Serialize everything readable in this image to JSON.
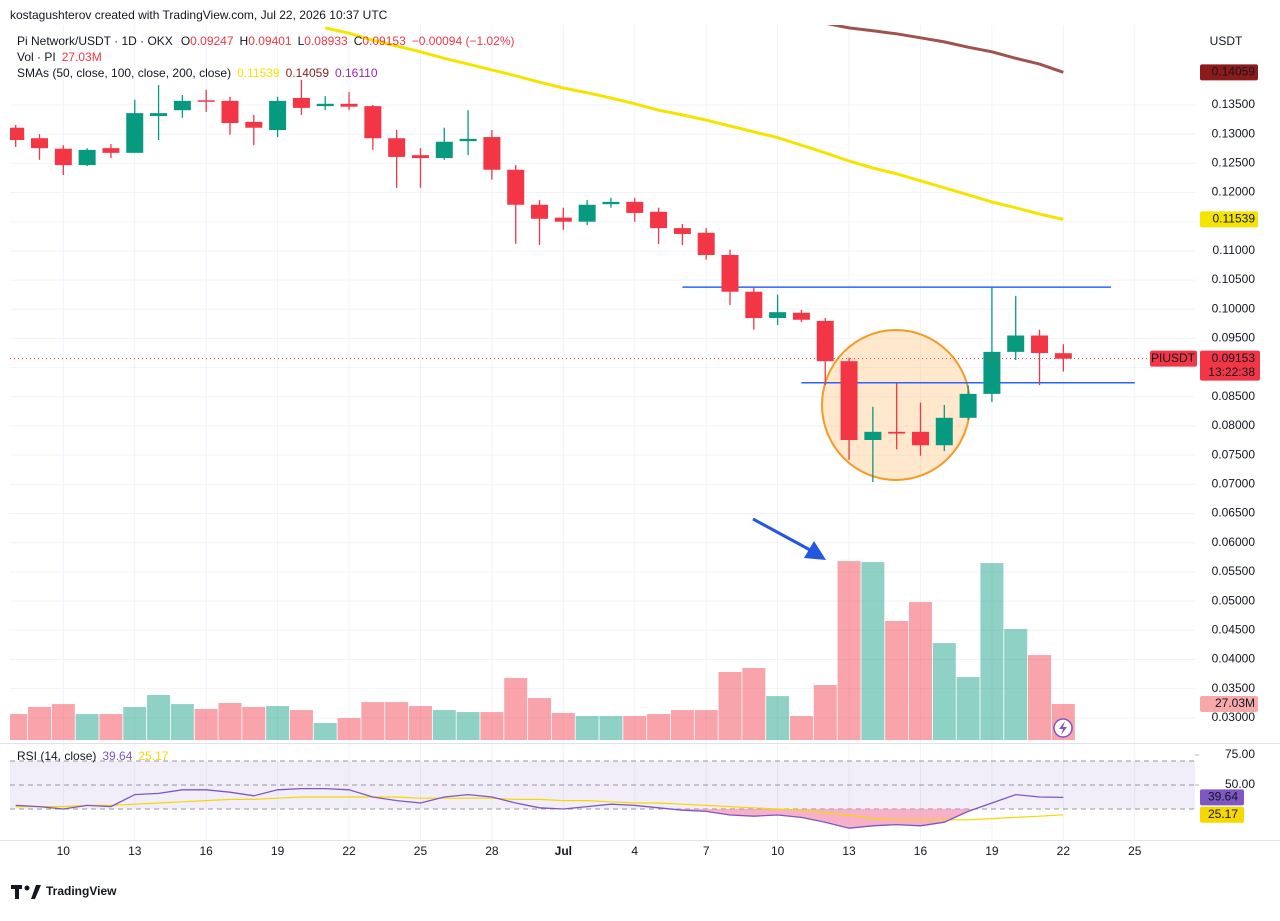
{
  "chart_data": {
    "type": "candlestick",
    "attribution": "kostagushterov created with TradingView.com, Jul 22, 2026 10:37 UTC",
    "title": "Pi Network/USDT · 1D · OKX",
    "ohlc_legend": [
      {
        "key": "O",
        "value": "0.09247"
      },
      {
        "key": "H",
        "value": "0.09401"
      },
      {
        "key": "L",
        "value": "0.08933"
      },
      {
        "key": "C",
        "value": "0.09153"
      }
    ],
    "change_legend": "−0.00094 (−1.02%)",
    "volume_legend": "Vol · PI",
    "sma_legend": "SMAs (50, close, 100, close, 200, close)",
    "sma_legend_values": [
      "0.11539",
      "0.14059",
      "0.16110"
    ],
    "sma_legend_colors": [
      "#f5e400",
      "#8e1b1b",
      "#9c27b0"
    ],
    "axis_unit": "USDT",
    "symbol_label": "PIUSDT",
    "countdown": "13:22:38",
    "logo": "TradingView",
    "up_color": "#089981",
    "down_color": "#f23645",
    "open": [
      0.1311,
      0.1293,
      0.1275,
      0.1247,
      0.1276,
      0.1268,
      0.1331,
      0.1341,
      0.1358,
      0.1357,
      0.1321,
      0.1307,
      0.1362,
      0.1348,
      0.1352,
      0.1348,
      0.1293,
      0.1264,
      0.1259,
      0.1288,
      0.1295,
      0.1239,
      0.1179,
      0.1157,
      0.115,
      0.118,
      0.1184,
      0.1167,
      0.1139,
      0.1131,
      0.1093,
      0.103,
      0.0985,
      0.0994,
      0.098,
      0.0911,
      0.0776,
      0.079,
      0.079,
      0.0767,
      0.0814,
      0.0855,
      0.0927,
      0.0955,
      0.09247
    ],
    "high": [
      0.1316,
      0.13,
      0.1281,
      0.1276,
      0.1283,
      0.1359,
      0.1384,
      0.1367,
      0.1376,
      0.1364,
      0.1333,
      0.1364,
      0.1393,
      0.1365,
      0.1372,
      0.135,
      0.1307,
      0.1276,
      0.1311,
      0.1341,
      0.1307,
      0.1247,
      0.1187,
      0.1174,
      0.1187,
      0.1191,
      0.1191,
      0.1174,
      0.1146,
      0.1139,
      0.1102,
      0.1037,
      0.1025,
      0.0999,
      0.0985,
      0.0917,
      0.0833,
      0.0873,
      0.084,
      0.0836,
      0.087,
      0.1037,
      0.1023,
      0.0965,
      0.09401
    ],
    "low": [
      0.1278,
      0.1256,
      0.123,
      0.1245,
      0.1259,
      0.1268,
      0.129,
      0.1328,
      0.1338,
      0.1299,
      0.1281,
      0.1295,
      0.1333,
      0.1341,
      0.1341,
      0.1273,
      0.1208,
      0.1208,
      0.1256,
      0.1264,
      0.1222,
      0.1112,
      0.111,
      0.1136,
      0.1144,
      0.1174,
      0.115,
      0.1112,
      0.111,
      0.1085,
      0.1007,
      0.0965,
      0.0973,
      0.0978,
      0.087,
      0.0742,
      0.0704,
      0.076,
      0.0749,
      0.0757,
      0.081,
      0.0841,
      0.0913,
      0.087,
      0.08933
    ],
    "close": [
      0.129,
      0.1276,
      0.1247,
      0.1273,
      0.1268,
      0.1336,
      0.1336,
      0.1357,
      0.1356,
      0.1319,
      0.1311,
      0.1357,
      0.1345,
      0.1352,
      0.1347,
      0.1293,
      0.1261,
      0.1259,
      0.1287,
      0.1292,
      0.1239,
      0.1179,
      0.1155,
      0.115,
      0.1179,
      0.1184,
      0.1165,
      0.1139,
      0.1129,
      0.1093,
      0.103,
      0.0985,
      0.0995,
      0.0982,
      0.0911,
      0.0776,
      0.079,
      0.0787,
      0.0767,
      0.0814,
      0.0855,
      0.0927,
      0.0955,
      0.0925,
      0.09153
    ],
    "sma": [
      {
        "color": "#f5e400",
        "values": [
          null,
          null,
          null,
          null,
          null,
          null,
          null,
          null,
          null,
          null,
          null,
          null,
          null,
          0.1482,
          0.1473,
          0.1461,
          0.1451,
          0.1441,
          0.143,
          0.142,
          0.141,
          0.14,
          0.1389,
          0.1379,
          0.1371,
          0.1362,
          0.1352,
          0.1341,
          0.1333,
          0.1324,
          0.1314,
          0.1304,
          0.1294,
          0.1281,
          0.1268,
          0.1254,
          0.1242,
          0.1232,
          0.122,
          0.1208,
          0.1196,
          0.1184,
          0.1174,
          0.1163,
          0.11539
        ],
        "label_text_color": "#131722"
      },
      {
        "color": "#a0524d",
        "values": [
          null,
          null,
          null,
          null,
          null,
          null,
          null,
          null,
          null,
          null,
          null,
          null,
          null,
          null,
          null,
          null,
          null,
          null,
          null,
          null,
          null,
          null,
          null,
          null,
          null,
          null,
          null,
          null,
          null,
          null,
          null,
          null,
          null,
          null,
          0.149,
          0.1482,
          0.1477,
          0.1472,
          0.1465,
          0.1458,
          0.1449,
          0.1441,
          0.143,
          0.142,
          0.14059
        ],
        "label_text_color": "#ffffff"
      }
    ],
    "sma_label_colors": [
      "#f5e400",
      "#8e1b1b"
    ],
    "levels": [
      0.1038,
      0.0874
    ],
    "level_color": "#2962ff",
    "ylim": [
      0.0262,
      0.1487
    ],
    "yticks": [
      {
        "value": 0.03,
        "label": "0.03000"
      },
      {
        "value": 0.035,
        "label": "0.03500"
      },
      {
        "value": 0.04,
        "label": "0.04000"
      },
      {
        "value": 0.045,
        "label": "0.04500"
      },
      {
        "value": 0.05,
        "label": "0.05000"
      },
      {
        "value": 0.055,
        "label": "0.05500"
      },
      {
        "value": 0.06,
        "label": "0.06000"
      },
      {
        "value": 0.065,
        "label": "0.06500"
      },
      {
        "value": 0.07,
        "label": "0.07000"
      },
      {
        "value": 0.075,
        "label": "0.07500"
      },
      {
        "value": 0.08,
        "label": "0.08000"
      },
      {
        "value": 0.085,
        "label": "0.08500"
      },
      {
        "value": 0.09,
        "label": "0.09000"
      },
      {
        "value": 0.095,
        "label": "0.09500"
      },
      {
        "value": 0.1,
        "label": "0.10000"
      },
      {
        "value": 0.105,
        "label": "0.10500"
      },
      {
        "value": 0.11,
        "label": "0.11000"
      },
      {
        "value": 0.115,
        "label": "0.11500"
      },
      {
        "value": 0.12,
        "label": "0.12000"
      },
      {
        "value": 0.125,
        "label": "0.12500"
      },
      {
        "value": 0.13,
        "label": "0.13000"
      },
      {
        "value": 0.135,
        "label": "0.13500"
      }
    ],
    "xticks": [
      {
        "value": 2,
        "label": "10"
      },
      {
        "value": 5,
        "label": "13"
      },
      {
        "value": 8,
        "label": "16"
      },
      {
        "value": 11,
        "label": "19"
      },
      {
        "value": 14,
        "label": "22"
      },
      {
        "value": 17,
        "label": "25"
      },
      {
        "value": 20,
        "label": "28"
      },
      {
        "value": 23,
        "label": "Jul"
      },
      {
        "value": 26,
        "label": "4"
      },
      {
        "value": 29,
        "label": "7"
      },
      {
        "value": 32,
        "label": "10"
      },
      {
        "value": 35,
        "label": "13"
      },
      {
        "value": 38,
        "label": "16"
      },
      {
        "value": 41,
        "label": "19"
      },
      {
        "value": 44,
        "label": "22"
      },
      {
        "value": 47,
        "label": "25"
      }
    ],
    "volume": {
      "ylim": [
        0,
        160
      ],
      "values": [
        19.5,
        24.8,
        27.0,
        19.5,
        19.5,
        24.8,
        33.8,
        27.0,
        23.3,
        27.8,
        24.8,
        25.5,
        22.5,
        12.8,
        16.5,
        28.5,
        28.5,
        25.5,
        22.5,
        21.0,
        21.0,
        46.6,
        31.5,
        20.3,
        18.0,
        18.0,
        18.0,
        19.5,
        22.5,
        22.5,
        51.1,
        54.1,
        33.0,
        18.0,
        41.3,
        134.4,
        133.7,
        89.4,
        103.6,
        72.8,
        47.3,
        132.9,
        83.4,
        63.8,
        27.03
      ],
      "value_labels": [
        null,
        null,
        null,
        null,
        null,
        null,
        null,
        null,
        null,
        null,
        null,
        null,
        null,
        null,
        null,
        null,
        null,
        null,
        null,
        null,
        null,
        null,
        null,
        null,
        null,
        null,
        null,
        null,
        null,
        null,
        null,
        null,
        null,
        null,
        null,
        null,
        null,
        null,
        null,
        null,
        null,
        null,
        null,
        null,
        "27.03M"
      ]
    },
    "rsi": {
      "title": "RSI (14, close)",
      "color": "#7e57c2",
      "ma_color": "#f5d800",
      "values": [
        33,
        32,
        30,
        33,
        32,
        42,
        43,
        46,
        46,
        44,
        41,
        46,
        47,
        47,
        46,
        40,
        37,
        35,
        40,
        42,
        40,
        35,
        31,
        30,
        32,
        34,
        33,
        31,
        29,
        28,
        25,
        24,
        25,
        23,
        19,
        14,
        16,
        17,
        16,
        19,
        28,
        35,
        42,
        40,
        39.64
      ],
      "ma_values": [
        32,
        32,
        32,
        33,
        33,
        34,
        35,
        36,
        37,
        38,
        38,
        39,
        40,
        40,
        40,
        40,
        40,
        39,
        39,
        39,
        39,
        38,
        38,
        37,
        37,
        36,
        35,
        35,
        34,
        33,
        32,
        31,
        30,
        29,
        27,
        25,
        22,
        21,
        21,
        21,
        21,
        22,
        23,
        24,
        25.17
      ],
      "ylim": [
        4.17,
        83.33
      ],
      "yticks": [
        {
          "value": 75,
          "label": "75.00"
        },
        {
          "value": 50,
          "label": "50.00"
        }
      ],
      "bands": [
        70,
        50,
        30
      ]
    }
  }
}
